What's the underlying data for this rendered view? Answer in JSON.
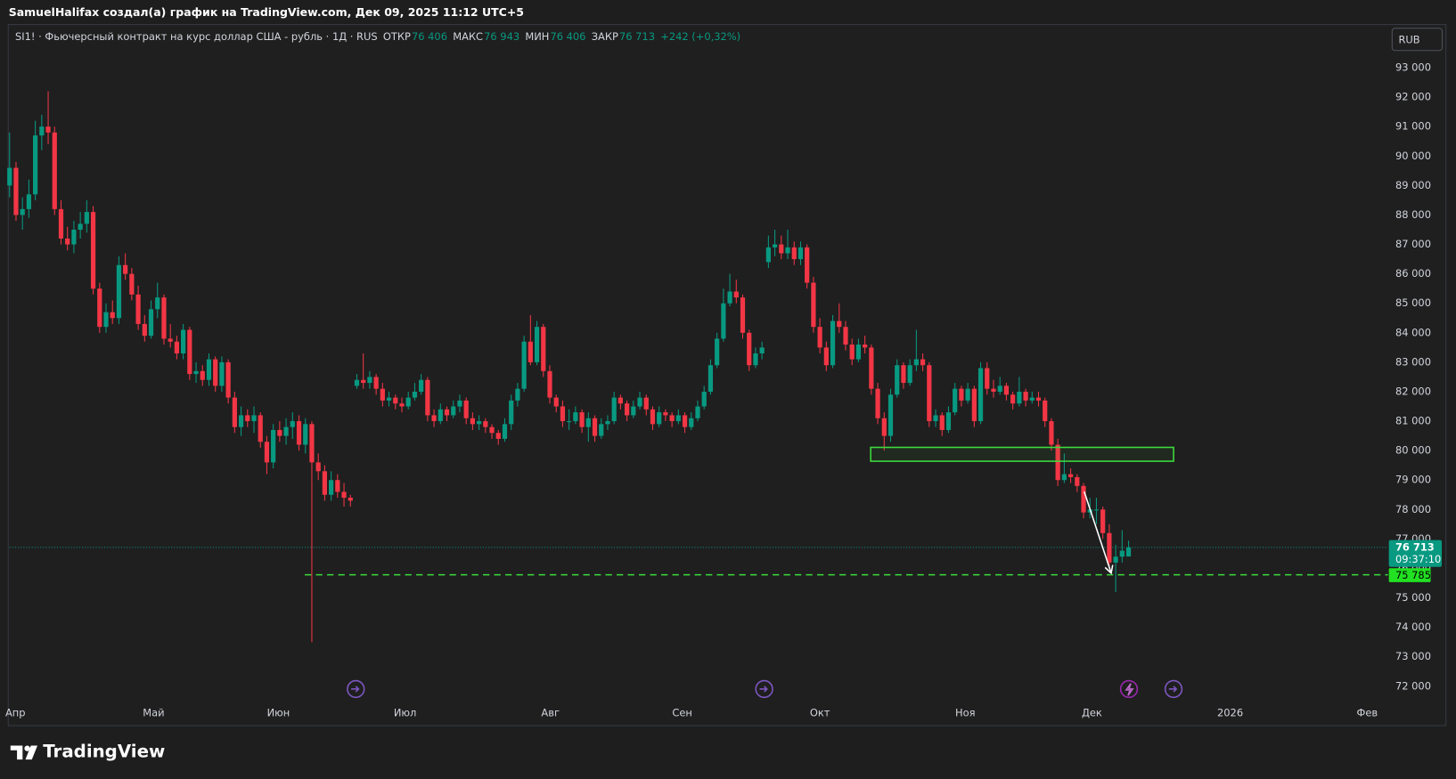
{
  "header": {
    "credit": "SamuelHalifax создал(а) график на TradingView.com, Дек 09, 2025 11:12 UTC+5"
  },
  "footer": {
    "brand": "TradingView"
  },
  "chart_data": {
    "type": "candlestick",
    "title": "SI1! · Фьючерсный контракт на курс доллар США - рубль · 1Д · RUS",
    "legend_values": [
      {
        "name": "ОТКР",
        "value": 76406,
        "label": "76 406"
      },
      {
        "name": "МАКС",
        "value": 76943,
        "label": "76 943"
      },
      {
        "name": "МИН",
        "value": 76406,
        "label": "76 406"
      },
      {
        "name": "ЗАКР",
        "value": 76713,
        "label": "76 713"
      }
    ],
    "change": "+242 (+0,32%)",
    "currency": "RUB",
    "up_color": "#089981",
    "down_color": "#f23645",
    "grid": false,
    "ylim": [
      71433,
      94417
    ],
    "yticks": [
      {
        "value": 72000,
        "label": "72 000"
      },
      {
        "value": 73000,
        "label": "73 000"
      },
      {
        "value": 74000,
        "label": "74 000"
      },
      {
        "value": 75000,
        "label": "75 000"
      },
      {
        "value": 76000,
        "label": "76 000"
      },
      {
        "value": 77000,
        "label": "77 000"
      },
      {
        "value": 78000,
        "label": "78 000"
      },
      {
        "value": 79000,
        "label": "79 000"
      },
      {
        "value": 80000,
        "label": "80 000"
      },
      {
        "value": 81000,
        "label": "81 000"
      },
      {
        "value": 82000,
        "label": "82 000"
      },
      {
        "value": 83000,
        "label": "83 000"
      },
      {
        "value": 84000,
        "label": "84 000"
      },
      {
        "value": 85000,
        "label": "85 000"
      },
      {
        "value": 86000,
        "label": "86 000"
      },
      {
        "value": 87000,
        "label": "87 000"
      },
      {
        "value": 88000,
        "label": "88 000"
      },
      {
        "value": 89000,
        "label": "89 000"
      },
      {
        "value": 90000,
        "label": "90 000"
      },
      {
        "value": 91000,
        "label": "91 000"
      },
      {
        "value": 92000,
        "label": "92 000"
      },
      {
        "value": 93000,
        "label": "93 000"
      }
    ],
    "xlim": [
      0,
      213.9
    ],
    "xticks": [
      {
        "value": 0.9,
        "label": "Апр"
      },
      {
        "value": 22.4,
        "label": "Май"
      },
      {
        "value": 41.8,
        "label": "Июн"
      },
      {
        "value": 61.5,
        "label": "Июл"
      },
      {
        "value": 84.1,
        "label": "Авг"
      },
      {
        "value": 104.6,
        "label": "Сен"
      },
      {
        "value": 126,
        "label": "Окт"
      },
      {
        "value": 148.6,
        "label": "Ноя"
      },
      {
        "value": 168.3,
        "label": "Дек"
      },
      {
        "value": 189.8,
        "label": "2026"
      },
      {
        "value": 211.1,
        "label": "Фев"
      }
    ],
    "ohlc": [
      [
        89000,
        90800,
        88600,
        89600
      ],
      [
        89600,
        89800,
        87800,
        88000
      ],
      [
        88000,
        88600,
        87500,
        88200
      ],
      [
        88200,
        89200,
        87900,
        88700
      ],
      [
        88700,
        91200,
        88500,
        90700
      ],
      [
        90700,
        91400,
        90200,
        91000
      ],
      [
        91000,
        92200,
        90400,
        90800
      ],
      [
        90800,
        91000,
        88000,
        88200
      ],
      [
        88200,
        88500,
        87000,
        87200
      ],
      [
        87200,
        87600,
        86800,
        87000
      ],
      [
        87000,
        87800,
        86700,
        87500
      ],
      [
        87500,
        88100,
        87200,
        87700
      ],
      [
        87700,
        88500,
        87400,
        88100
      ],
      [
        88100,
        88300,
        85300,
        85500
      ],
      [
        85500,
        85700,
        84000,
        84200
      ],
      [
        84200,
        85000,
        84000,
        84700
      ],
      [
        84700,
        85100,
        84300,
        84500
      ],
      [
        84500,
        86600,
        84300,
        86300
      ],
      [
        86300,
        86700,
        85800,
        86000
      ],
      [
        86000,
        86200,
        85100,
        85300
      ],
      [
        85300,
        85600,
        84100,
        84300
      ],
      [
        84300,
        84600,
        83700,
        83900
      ],
      [
        83900,
        85100,
        83800,
        84800
      ],
      [
        84800,
        85700,
        84500,
        85200
      ],
      [
        85200,
        85300,
        83600,
        83800
      ],
      [
        83800,
        84300,
        83500,
        83700
      ],
      [
        83700,
        83900,
        83100,
        83300
      ],
      [
        83300,
        84300,
        83100,
        84100
      ],
      [
        84100,
        84200,
        82400,
        82600
      ],
      [
        82600,
        83000,
        82300,
        82700
      ],
      [
        82700,
        82900,
        82200,
        82400
      ],
      [
        82400,
        83300,
        82200,
        83100
      ],
      [
        83100,
        83200,
        82000,
        82200
      ],
      [
        82200,
        83200,
        82000,
        83000
      ],
      [
        83000,
        83100,
        81600,
        81800
      ],
      [
        81800,
        82000,
        80600,
        80800
      ],
      [
        80800,
        81500,
        80500,
        81200
      ],
      [
        81200,
        81400,
        80800,
        81000
      ],
      [
        81000,
        81500,
        80600,
        81200
      ],
      [
        81200,
        81300,
        80100,
        80300
      ],
      [
        80300,
        80500,
        79200,
        79600
      ],
      [
        79600,
        80900,
        79400,
        80700
      ],
      [
        80700,
        81000,
        80300,
        80500
      ],
      [
        80500,
        81100,
        80200,
        80800
      ],
      [
        80800,
        81300,
        80400,
        81000
      ],
      [
        81000,
        81200,
        80000,
        80200
      ],
      [
        80200,
        81100,
        79900,
        80900
      ],
      [
        80900,
        81000,
        73500,
        79600
      ],
      [
        79600,
        79900,
        79000,
        79300
      ],
      [
        79300,
        79500,
        78300,
        78500
      ],
      [
        78500,
        79300,
        78300,
        79000
      ],
      [
        79000,
        79200,
        78400,
        78600
      ],
      [
        78600,
        78900,
        78100,
        78400
      ],
      [
        78400,
        78500,
        78100,
        78300
      ],
      [
        82200,
        82600,
        82100,
        82400
      ],
      [
        82400,
        83300,
        82100,
        82300
      ],
      [
        82300,
        82700,
        82100,
        82500
      ],
      [
        82500,
        82600,
        81900,
        82100
      ],
      [
        82100,
        82300,
        81500,
        81700
      ],
      [
        81700,
        82000,
        81500,
        81800
      ],
      [
        81800,
        81900,
        81400,
        81600
      ],
      [
        81600,
        81800,
        81300,
        81500
      ],
      [
        81500,
        82000,
        81400,
        81800
      ],
      [
        81800,
        82300,
        81700,
        82000
      ],
      [
        82000,
        82600,
        81900,
        82400
      ],
      [
        82400,
        82500,
        81000,
        81200
      ],
      [
        81200,
        81400,
        80800,
        81000
      ],
      [
        81000,
        81600,
        80900,
        81400
      ],
      [
        81400,
        81500,
        81000,
        81200
      ],
      [
        81200,
        81700,
        81100,
        81500
      ],
      [
        81500,
        81900,
        81300,
        81700
      ],
      [
        81700,
        81800,
        80900,
        81100
      ],
      [
        81100,
        81300,
        80700,
        80900
      ],
      [
        80900,
        81200,
        80700,
        81000
      ],
      [
        81000,
        81100,
        80600,
        80800
      ],
      [
        80800,
        80900,
        80400,
        80600
      ],
      [
        80600,
        80700,
        80200,
        80400
      ],
      [
        80400,
        81100,
        80300,
        80900
      ],
      [
        80900,
        81900,
        80700,
        81700
      ],
      [
        81700,
        82300,
        81500,
        82100
      ],
      [
        82100,
        83900,
        82000,
        83700
      ],
      [
        83700,
        84600,
        82900,
        83000
      ],
      [
        83000,
        84400,
        82900,
        84200
      ],
      [
        84200,
        84300,
        82500,
        82700
      ],
      [
        82700,
        82900,
        81600,
        81800
      ],
      [
        81800,
        81900,
        81300,
        81500
      ],
      [
        81500,
        81700,
        80800,
        81000
      ],
      [
        81000,
        81400,
        80700,
        81000
      ],
      [
        81000,
        81500,
        80900,
        81300
      ],
      [
        81300,
        81400,
        80600,
        80800
      ],
      [
        80800,
        81300,
        80300,
        81100
      ],
      [
        81100,
        81200,
        80300,
        80500
      ],
      [
        80500,
        81100,
        80400,
        80900
      ],
      [
        80900,
        81200,
        80700,
        81000
      ],
      [
        81000,
        82000,
        80900,
        81800
      ],
      [
        81800,
        81900,
        81400,
        81600
      ],
      [
        81600,
        81700,
        81000,
        81200
      ],
      [
        81200,
        81700,
        81100,
        81500
      ],
      [
        81500,
        82000,
        81400,
        81800
      ],
      [
        81800,
        81900,
        81200,
        81400
      ],
      [
        81400,
        81500,
        80700,
        80900
      ],
      [
        80900,
        81500,
        80800,
        81300
      ],
      [
        81300,
        81400,
        81000,
        81200
      ],
      [
        81200,
        81300,
        80800,
        81000
      ],
      [
        81000,
        81400,
        80900,
        81200
      ],
      [
        81200,
        81300,
        80600,
        80800
      ],
      [
        80800,
        81300,
        80700,
        81100
      ],
      [
        81100,
        81700,
        81000,
        81500
      ],
      [
        81500,
        82200,
        81400,
        82000
      ],
      [
        82000,
        83100,
        81900,
        82900
      ],
      [
        82900,
        84000,
        82800,
        83800
      ],
      [
        83800,
        85500,
        83700,
        85000
      ],
      [
        85000,
        86000,
        84900,
        85400
      ],
      [
        85400,
        85800,
        85000,
        85200
      ],
      [
        85200,
        85300,
        83800,
        84000
      ],
      [
        84000,
        84100,
        82700,
        82900
      ],
      [
        82900,
        83500,
        82800,
        83300
      ],
      [
        83300,
        83700,
        83100,
        83500
      ],
      [
        86400,
        87300,
        86200,
        86900
      ],
      [
        86900,
        87500,
        86600,
        87000
      ],
      [
        87000,
        87300,
        86500,
        86700
      ],
      [
        86700,
        87500,
        86500,
        86900
      ],
      [
        86900,
        87100,
        86300,
        86500
      ],
      [
        86500,
        87100,
        86300,
        86900
      ],
      [
        86900,
        87000,
        85500,
        85700
      ],
      [
        85700,
        85900,
        84000,
        84200
      ],
      [
        84200,
        84500,
        83300,
        83500
      ],
      [
        83500,
        83700,
        82700,
        82900
      ],
      [
        82900,
        84600,
        82800,
        84400
      ],
      [
        84400,
        85000,
        84000,
        84200
      ],
      [
        84200,
        84400,
        83400,
        83600
      ],
      [
        83600,
        83800,
        82900,
        83100
      ],
      [
        83100,
        83800,
        83000,
        83600
      ],
      [
        83600,
        83900,
        83300,
        83500
      ],
      [
        83500,
        83600,
        81900,
        82100
      ],
      [
        82100,
        82300,
        80900,
        81100
      ],
      [
        81100,
        81300,
        80000,
        80500
      ],
      [
        80500,
        82100,
        80300,
        81900
      ],
      [
        81900,
        83100,
        81800,
        82900
      ],
      [
        82900,
        83000,
        82100,
        82300
      ],
      [
        82300,
        83100,
        82200,
        82900
      ],
      [
        82900,
        84100,
        82700,
        83100
      ],
      [
        83100,
        83300,
        82700,
        82900
      ],
      [
        82900,
        83000,
        80800,
        81000
      ],
      [
        81000,
        81400,
        80800,
        81200
      ],
      [
        81200,
        81300,
        80500,
        80700
      ],
      [
        80700,
        81500,
        80600,
        81300
      ],
      [
        81300,
        82300,
        81200,
        82100
      ],
      [
        82100,
        82200,
        81500,
        81700
      ],
      [
        81700,
        82300,
        81600,
        82100
      ],
      [
        82100,
        82200,
        80800,
        81000
      ],
      [
        81000,
        83000,
        80900,
        82800
      ],
      [
        82800,
        83000,
        81900,
        82100
      ],
      [
        82100,
        82400,
        81800,
        82000
      ],
      [
        82000,
        82500,
        81900,
        82200
      ],
      [
        82200,
        82300,
        81700,
        81900
      ],
      [
        81900,
        82000,
        81400,
        81600
      ],
      [
        81600,
        82500,
        81500,
        82000
      ],
      [
        82000,
        82100,
        81500,
        81700
      ],
      [
        81700,
        82000,
        81600,
        81800
      ],
      [
        81800,
        82000,
        81500,
        81700
      ],
      [
        81700,
        81800,
        80800,
        81000
      ],
      [
        81000,
        81100,
        80000,
        80200
      ],
      [
        80200,
        80400,
        78800,
        79000
      ],
      [
        79000,
        79900,
        78900,
        79200
      ],
      [
        79200,
        79400,
        78900,
        79100
      ],
      [
        79100,
        79200,
        78600,
        78800
      ],
      [
        78800,
        78900,
        77700,
        77900
      ],
      [
        77900,
        78400,
        77700,
        78000
      ],
      [
        78000,
        78400,
        77500,
        78000
      ],
      [
        78000,
        78100,
        77000,
        77200
      ],
      [
        77200,
        77500,
        76000,
        76200
      ],
      [
        76200,
        76800,
        75200,
        76400
      ],
      [
        76400,
        77300,
        76200,
        76600
      ],
      [
        76406,
        76943,
        76406,
        76713
      ]
    ],
    "last_price": {
      "value": 76713,
      "label": "76 713",
      "countdown": "09:37:10",
      "color": "#089981"
    },
    "drawings": {
      "zone": {
        "top": 80110,
        "bottom": 79640,
        "from": 133.9,
        "to": 181,
        "color": "#3ddc3d"
      },
      "level": {
        "value": 75785,
        "label": "75 785",
        "from": 45.9,
        "color": "#3ddc3d"
      },
      "arrow": {
        "from": [
          167.1,
          78610
        ],
        "to": [
          171.3,
          75840
        ],
        "color": "#ffffff"
      }
    }
  }
}
